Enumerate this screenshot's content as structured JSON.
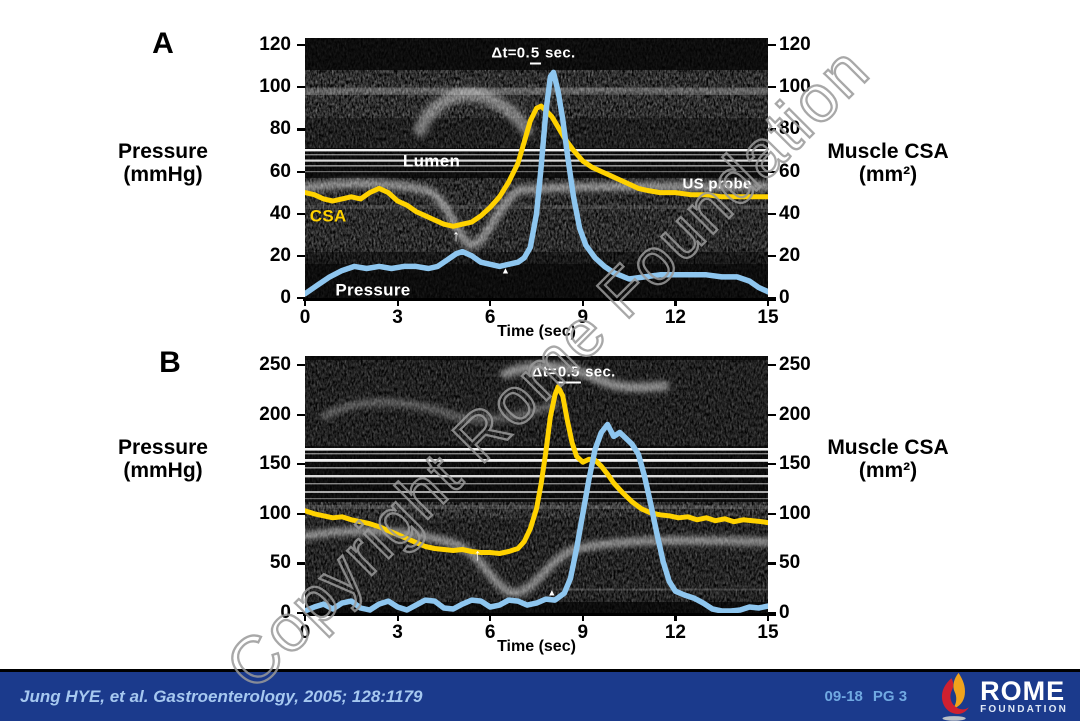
{
  "watermark": {
    "text": "Copyright Rome Foundation",
    "color": "#9a9a9a"
  },
  "colors": {
    "pressure_line": "#8ec6ef",
    "csa_line": "#ffd200",
    "footer_bg": "#1b3a8c",
    "citation_text": "#a6c8f0",
    "page_code_text": "#70a9e2",
    "watermark": "#9a9a9a",
    "flame_red": "#cf2030",
    "flame_yellow": "#f0a31c"
  },
  "panelA": {
    "label": "A",
    "left_title": [
      "Pressure",
      "(mmHg)"
    ],
    "right_title": [
      "Muscle CSA",
      "(mm²)"
    ]
  },
  "panelB": {
    "label": "B",
    "left_title": [
      "Pressure",
      "(mmHg)"
    ],
    "right_title": [
      "Muscle CSA",
      "(mm²)"
    ]
  },
  "chart_data": [
    {
      "panel": "A",
      "type": "line",
      "xlabel": "Time (sec)",
      "xlim": [
        0,
        15
      ],
      "ylim": [
        0,
        120
      ],
      "x_ticks": [
        0,
        3,
        6,
        9,
        12,
        15
      ],
      "y_ticks": [
        0,
        20,
        40,
        60,
        80,
        100,
        120
      ],
      "y_axis_left": "Pressure (mmHg)",
      "y_axis_right": "Muscle CSA (mm²)",
      "grid": false,
      "legend": "in-plot text labels",
      "series": [
        {
          "name": "CSA",
          "color": "#ffd200",
          "width": 5,
          "points": [
            [
              0,
              50
            ],
            [
              0.3,
              49
            ],
            [
              0.6,
              47
            ],
            [
              0.9,
              46
            ],
            [
              1.2,
              47
            ],
            [
              1.5,
              48
            ],
            [
              1.8,
              47
            ],
            [
              2.1,
              50
            ],
            [
              2.4,
              52
            ],
            [
              2.7,
              50
            ],
            [
              3,
              46
            ],
            [
              3.3,
              44
            ],
            [
              3.6,
              41
            ],
            [
              3.9,
              39
            ],
            [
              4.2,
              37
            ],
            [
              4.5,
              35
            ],
            [
              4.8,
              34
            ],
            [
              5.1,
              35
            ],
            [
              5.4,
              36
            ],
            [
              5.7,
              39
            ],
            [
              6,
              43
            ],
            [
              6.3,
              48
            ],
            [
              6.6,
              55
            ],
            [
              6.9,
              64
            ],
            [
              7.1,
              74
            ],
            [
              7.3,
              84
            ],
            [
              7.5,
              90
            ],
            [
              7.65,
              91
            ],
            [
              7.8,
              89
            ],
            [
              8,
              86
            ],
            [
              8.2,
              81
            ],
            [
              8.4,
              76
            ],
            [
              8.7,
              70
            ],
            [
              9,
              65
            ],
            [
              9.3,
              62
            ],
            [
              9.6,
              60
            ],
            [
              9.9,
              58
            ],
            [
              10.2,
              56
            ],
            [
              10.5,
              54
            ],
            [
              10.8,
              52
            ],
            [
              11.1,
              51
            ],
            [
              11.5,
              50
            ],
            [
              12,
              50
            ],
            [
              12.5,
              49
            ],
            [
              13,
              49
            ],
            [
              13.5,
              48
            ],
            [
              14,
              48
            ],
            [
              14.5,
              48
            ],
            [
              15,
              48
            ]
          ]
        },
        {
          "name": "Pressure",
          "color": "#8ec6ef",
          "width": 5.5,
          "points": [
            [
              0,
              2
            ],
            [
              0.4,
              6
            ],
            [
              0.8,
              10
            ],
            [
              1.2,
              13
            ],
            [
              1.6,
              15
            ],
            [
              2,
              14
            ],
            [
              2.4,
              15
            ],
            [
              2.8,
              14
            ],
            [
              3.2,
              15
            ],
            [
              3.6,
              15
            ],
            [
              4,
              14
            ],
            [
              4.3,
              15
            ],
            [
              4.6,
              18
            ],
            [
              4.9,
              21
            ],
            [
              5.1,
              22
            ],
            [
              5.4,
              20
            ],
            [
              5.7,
              17
            ],
            [
              6,
              16
            ],
            [
              6.3,
              15
            ],
            [
              6.6,
              16
            ],
            [
              6.9,
              17
            ],
            [
              7.1,
              19
            ],
            [
              7.3,
              24
            ],
            [
              7.5,
              40
            ],
            [
              7.65,
              62
            ],
            [
              7.8,
              88
            ],
            [
              7.95,
              105
            ],
            [
              8.05,
              107
            ],
            [
              8.2,
              98
            ],
            [
              8.35,
              85
            ],
            [
              8.5,
              68
            ],
            [
              8.7,
              48
            ],
            [
              8.9,
              33
            ],
            [
              9.1,
              25
            ],
            [
              9.4,
              19
            ],
            [
              9.7,
              15
            ],
            [
              10,
              12
            ],
            [
              10.5,
              9
            ],
            [
              11,
              10
            ],
            [
              11.5,
              11
            ],
            [
              12,
              11
            ],
            [
              12.5,
              11
            ],
            [
              13,
              11
            ],
            [
              13.5,
              10
            ],
            [
              14,
              10
            ],
            [
              14.4,
              8
            ],
            [
              14.7,
              5
            ],
            [
              15,
              3
            ]
          ]
        }
      ],
      "annotations": [
        {
          "name": "dt-label",
          "parts": [
            "Δt=0.",
            "5",
            " sec."
          ],
          "t": 7.4,
          "v": 116,
          "size": 15
        },
        {
          "name": "lumen-label",
          "text": "Lumen",
          "t": 4.1,
          "v": 65,
          "size": 17
        },
        {
          "name": "us-probe-label",
          "text": "US probe",
          "t": 13.35,
          "v": 54,
          "size": 15
        },
        {
          "name": "csa-label",
          "text": "CSA",
          "t": 0.75,
          "v": 39,
          "size": 17,
          "color": "#ffd200"
        },
        {
          "name": "pressure-label",
          "text": "Pressure",
          "t": 2.2,
          "v": 4,
          "size": 17
        },
        {
          "name": "contraction-arrow",
          "text": "↑",
          "t": 4.9,
          "v": 29,
          "size": 16
        },
        {
          "name": "onset-marker",
          "text": "▲",
          "t": 6.5,
          "v": 13,
          "size": 9
        }
      ]
    },
    {
      "panel": "B",
      "type": "line",
      "xlabel": "Time (sec)",
      "xlim": [
        0,
        15
      ],
      "ylim": [
        0,
        250
      ],
      "x_ticks": [
        0,
        3,
        6,
        9,
        12,
        15
      ],
      "y_ticks": [
        0,
        50,
        100,
        150,
        200,
        250
      ],
      "y_axis_left": "Pressure (mmHg)",
      "y_axis_right": "Muscle CSA (mm²)",
      "grid": false,
      "legend": "in-plot text labels",
      "series": [
        {
          "name": "CSA",
          "color": "#ffd200",
          "width": 5,
          "points": [
            [
              0,
              103
            ],
            [
              0.3,
              100
            ],
            [
              0.6,
              98
            ],
            [
              0.9,
              96
            ],
            [
              1.2,
              97
            ],
            [
              1.5,
              94
            ],
            [
              1.8,
              92
            ],
            [
              2.1,
              90
            ],
            [
              2.4,
              87
            ],
            [
              2.7,
              83
            ],
            [
              3,
              79
            ],
            [
              3.3,
              75
            ],
            [
              3.6,
              71
            ],
            [
              3.9,
              67
            ],
            [
              4.2,
              65
            ],
            [
              4.5,
              64
            ],
            [
              4.8,
              63
            ],
            [
              5.1,
              64
            ],
            [
              5.4,
              62
            ],
            [
              5.7,
              61
            ],
            [
              6,
              61
            ],
            [
              6.3,
              60
            ],
            [
              6.6,
              62
            ],
            [
              6.9,
              65
            ],
            [
              7.1,
              72
            ],
            [
              7.3,
              85
            ],
            [
              7.5,
              105
            ],
            [
              7.65,
              130
            ],
            [
              7.8,
              162
            ],
            [
              7.95,
              198
            ],
            [
              8.1,
              220
            ],
            [
              8.2,
              228
            ],
            [
              8.35,
              219
            ],
            [
              8.5,
              194
            ],
            [
              8.65,
              172
            ],
            [
              8.8,
              158
            ],
            [
              9,
              152
            ],
            [
              9.2,
              155
            ],
            [
              9.4,
              154
            ],
            [
              9.6,
              148
            ],
            [
              9.8,
              140
            ],
            [
              10,
              131
            ],
            [
              10.3,
              121
            ],
            [
              10.6,
              112
            ],
            [
              10.9,
              105
            ],
            [
              11.2,
              101
            ],
            [
              11.5,
              99
            ],
            [
              11.8,
              98
            ],
            [
              12.1,
              96
            ],
            [
              12.4,
              97
            ],
            [
              12.7,
              94
            ],
            [
              13,
              96
            ],
            [
              13.3,
              93
            ],
            [
              13.6,
              95
            ],
            [
              13.9,
              92
            ],
            [
              14.2,
              94
            ],
            [
              14.5,
              93
            ],
            [
              14.8,
              92
            ],
            [
              15,
              91
            ]
          ]
        },
        {
          "name": "Pressure",
          "color": "#8ec6ef",
          "width": 5.5,
          "points": [
            [
              0,
              2
            ],
            [
              0.3,
              6
            ],
            [
              0.6,
              9
            ],
            [
              0.9,
              4
            ],
            [
              1.2,
              10
            ],
            [
              1.5,
              12
            ],
            [
              1.8,
              5
            ],
            [
              2.1,
              3
            ],
            [
              2.4,
              9
            ],
            [
              2.7,
              12
            ],
            [
              3,
              6
            ],
            [
              3.3,
              3
            ],
            [
              3.6,
              8
            ],
            [
              3.9,
              13
            ],
            [
              4.2,
              12
            ],
            [
              4.5,
              5
            ],
            [
              4.8,
              4
            ],
            [
              5.1,
              9
            ],
            [
              5.4,
              13
            ],
            [
              5.7,
              12
            ],
            [
              6,
              6
            ],
            [
              6.3,
              8
            ],
            [
              6.6,
              13
            ],
            [
              6.9,
              12
            ],
            [
              7.2,
              8
            ],
            [
              7.5,
              10
            ],
            [
              7.8,
              14
            ],
            [
              8.1,
              13
            ],
            [
              8.4,
              20
            ],
            [
              8.6,
              35
            ],
            [
              8.8,
              65
            ],
            [
              9,
              100
            ],
            [
              9.2,
              135
            ],
            [
              9.4,
              165
            ],
            [
              9.6,
              182
            ],
            [
              9.8,
              190
            ],
            [
              10,
              178
            ],
            [
              10.2,
              182
            ],
            [
              10.4,
              176
            ],
            [
              10.6,
              170
            ],
            [
              10.8,
              160
            ],
            [
              11,
              138
            ],
            [
              11.2,
              110
            ],
            [
              11.4,
              80
            ],
            [
              11.6,
              52
            ],
            [
              11.8,
              32
            ],
            [
              12,
              22
            ],
            [
              12.3,
              18
            ],
            [
              12.6,
              15
            ],
            [
              12.9,
              10
            ],
            [
              13.2,
              4
            ],
            [
              13.5,
              2
            ],
            [
              13.8,
              2
            ],
            [
              14.1,
              3
            ],
            [
              14.4,
              6
            ],
            [
              14.7,
              5
            ],
            [
              15,
              7
            ]
          ]
        }
      ],
      "annotations": [
        {
          "name": "dt-label",
          "parts": [
            "Δt=",
            "0.5",
            " sec."
          ],
          "t": 8.7,
          "v": 243,
          "size": 15
        },
        {
          "name": "contraction-arrow",
          "text": "↑",
          "t": 5.6,
          "v": 57,
          "size": 16
        },
        {
          "name": "onset-marker",
          "text": "▲",
          "t": 8,
          "v": 20,
          "size": 9
        }
      ]
    }
  ],
  "footer": {
    "citation": "Jung HYE, et al. Gastroenterology, 2005; 128:1179",
    "code": "09-18",
    "page": "PG 3",
    "logo_name": "ROME",
    "logo_sub": "FOUNDATION"
  }
}
